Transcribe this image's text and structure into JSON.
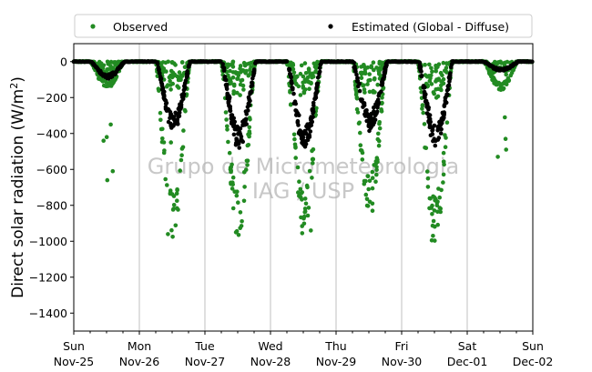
{
  "chart_data": {
    "type": "scatter",
    "title": "",
    "ylabel": "Direct solar radiation (W/m²)",
    "ylabel_main": "Direct solar radiation (W/m",
    "ylabel_sup": "2",
    "ylabel_close": ")",
    "ylim": [
      -1500,
      100
    ],
    "yticks": [
      0,
      -200,
      -400,
      -600,
      -800,
      -1000,
      -1200,
      -1400
    ],
    "xlim": [
      "2018-11-25 00:00",
      "2018-12-02 00:00"
    ],
    "xticks": [
      {
        "day": "Sun",
        "date": "Nov-25"
      },
      {
        "day": "Mon",
        "date": "Nov-26"
      },
      {
        "day": "Tue",
        "date": "Nov-27"
      },
      {
        "day": "Wed",
        "date": "Nov-28"
      },
      {
        "day": "Thu",
        "date": "Nov-29"
      },
      {
        "day": "Fri",
        "date": "Nov-30"
      },
      {
        "day": "Sat",
        "date": "Dec-01"
      },
      {
        "day": "Sun",
        "date": "Dec-02"
      }
    ],
    "grid": "vertical",
    "legend_position": "top (above plot)",
    "watermark": [
      "Grupo de Micrometeorologia",
      "IAG / USP"
    ],
    "series": [
      {
        "name": "Observed",
        "color": "#228b22",
        "marker": "dot",
        "days": [
          {
            "date": "Nov-25",
            "spread": 80,
            "bulk": 150,
            "extremes": [
              -350,
              -420,
              -440,
              -610,
              -660
            ]
          },
          {
            "date": "Nov-26",
            "spread": 180,
            "bulk": 980,
            "extremes": [
              -450,
              -960,
              -975
            ]
          },
          {
            "date": "Nov-27",
            "spread": 210,
            "bulk": 970,
            "extremes": [
              -950,
              -965
            ]
          },
          {
            "date": "Nov-28",
            "spread": 200,
            "bulk": 960,
            "extremes": [
              -940,
              -955
            ]
          },
          {
            "date": "Nov-29",
            "spread": 200,
            "bulk": 840,
            "extremes": [
              -780,
              -830
            ]
          },
          {
            "date": "Nov-30",
            "spread": 210,
            "bulk": 1000,
            "extremes": [
              -970,
              -995
            ]
          },
          {
            "date": "Dec-01",
            "spread": 100,
            "bulk": 160,
            "extremes": [
              -310,
              -430,
              -490,
              -530
            ]
          }
        ]
      },
      {
        "name": "Estimated (Global - Diffuse)",
        "color": "#000000",
        "marker": "dot",
        "days": [
          {
            "date": "Nov-25",
            "spread": 30,
            "peak": -90
          },
          {
            "date": "Nov-26",
            "spread": 60,
            "peak": -380
          },
          {
            "date": "Nov-27",
            "spread": 150,
            "peak": -470
          },
          {
            "date": "Nov-28",
            "spread": 140,
            "peak": -470
          },
          {
            "date": "Nov-29",
            "spread": 160,
            "peak": -360
          },
          {
            "date": "Nov-30",
            "spread": 150,
            "peak": -450
          },
          {
            "date": "Dec-01",
            "spread": 30,
            "peak": -50
          }
        ]
      }
    ]
  }
}
